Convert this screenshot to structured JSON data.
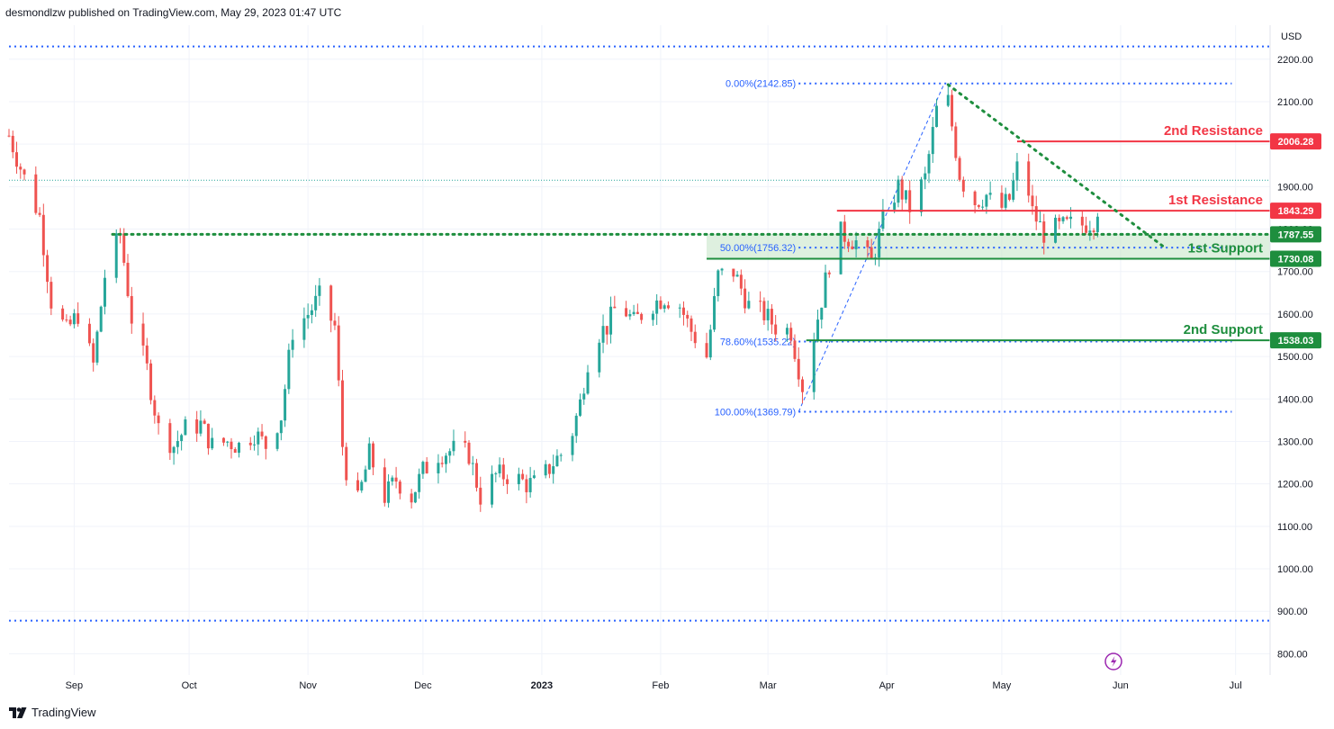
{
  "header": {
    "publisher_line": "desmondlzw published on TradingView.com, May 29, 2023 01:47 UTC"
  },
  "footer": {
    "brand": "TradingView"
  },
  "colors": {
    "up": "#26a69a",
    "down": "#ef5350",
    "resistance": "#f23645",
    "support": "#1e8e3e",
    "fib": "#2962ff",
    "trend": "#1e8e3e",
    "zone": "#c8e6c9",
    "grid": "#f0f3fa"
  },
  "chart_data": {
    "type": "candlestick",
    "currency_label": "USD",
    "ylim": [
      750,
      2280
    ],
    "y_ticks": [
      800,
      900,
      1000,
      1100,
      1200,
      1300,
      1400,
      1500,
      1600,
      1700,
      1800,
      1900,
      2000,
      2100,
      2200
    ],
    "y_tick_labels": [
      "800.00",
      "900.00",
      "1000.00",
      "1100.00",
      "1200.00",
      "1300.00",
      "1400.00",
      "1500.00",
      "1600.00",
      "1700.00",
      "1800.00",
      "1900.00",
      "2000.00",
      "2100.00",
      "2200.00"
    ],
    "x_labels": [
      {
        "label": "Sep",
        "date": "2022-09-01"
      },
      {
        "label": "Oct",
        "date": "2022-10-01"
      },
      {
        "label": "Nov",
        "date": "2022-11-01"
      },
      {
        "label": "Dec",
        "date": "2022-12-01"
      },
      {
        "label": "2023",
        "date": "2023-01-01",
        "bold": true
      },
      {
        "label": "Feb",
        "date": "2023-02-01"
      },
      {
        "label": "Mar",
        "date": "2023-03-01"
      },
      {
        "label": "Apr",
        "date": "2023-04-01"
      },
      {
        "label": "May",
        "date": "2023-05-01"
      },
      {
        "label": "Jun",
        "date": "2023-06-01"
      },
      {
        "label": "Jul",
        "date": "2023-07-01"
      }
    ],
    "x_range": [
      "2022-08-15",
      "2023-07-10"
    ],
    "price_path": [
      [
        "2022-08-15",
        2020
      ],
      [
        "2022-08-19",
        1920
      ],
      [
        "2022-08-23",
        1830
      ],
      [
        "2022-08-26",
        1630
      ],
      [
        "2022-08-30",
        1560
      ],
      [
        "2022-09-02",
        1600
      ],
      [
        "2022-09-06",
        1480
      ],
      [
        "2022-09-09",
        1690
      ],
      [
        "2022-09-13",
        1790
      ],
      [
        "2022-09-16",
        1590
      ],
      [
        "2022-09-20",
        1470
      ],
      [
        "2022-09-23",
        1330
      ],
      [
        "2022-09-27",
        1290
      ],
      [
        "2022-09-30",
        1330
      ],
      [
        "2022-10-04",
        1340
      ],
      [
        "2022-10-07",
        1290
      ],
      [
        "2022-10-11",
        1300
      ],
      [
        "2022-10-14",
        1290
      ],
      [
        "2022-10-18",
        1320
      ],
      [
        "2022-10-21",
        1290
      ],
      [
        "2022-10-25",
        1360
      ],
      [
        "2022-10-28",
        1560
      ],
      [
        "2022-11-01",
        1600
      ],
      [
        "2022-11-04",
        1640
      ],
      [
        "2022-11-08",
        1570
      ],
      [
        "2022-11-10",
        1290
      ],
      [
        "2022-11-13",
        1120
      ],
      [
        "2022-11-17",
        1270
      ],
      [
        "2022-11-21",
        1170
      ],
      [
        "2022-11-24",
        1210
      ],
      [
        "2022-11-28",
        1170
      ],
      [
        "2022-12-01",
        1230
      ],
      [
        "2022-12-05",
        1270
      ],
      [
        "2022-12-09",
        1280
      ],
      [
        "2022-12-13",
        1270
      ],
      [
        "2022-12-16",
        1170
      ],
      [
        "2022-12-20",
        1220
      ],
      [
        "2022-12-24",
        1220
      ],
      [
        "2022-12-28",
        1200
      ],
      [
        "2022-12-31",
        1200
      ],
      [
        "2023-01-04",
        1250
      ],
      [
        "2023-01-08",
        1290
      ],
      [
        "2023-01-11",
        1390
      ],
      [
        "2023-01-14",
        1540
      ],
      [
        "2023-01-18",
        1570
      ],
      [
        "2023-01-21",
        1630
      ],
      [
        "2023-01-25",
        1580
      ],
      [
        "2023-01-29",
        1620
      ],
      [
        "2023-02-02",
        1640
      ],
      [
        "2023-02-06",
        1620
      ],
      [
        "2023-02-09",
        1560
      ],
      [
        "2023-02-13",
        1500
      ],
      [
        "2023-02-16",
        1690
      ],
      [
        "2023-02-20",
        1700
      ],
      [
        "2023-02-24",
        1620
      ],
      [
        "2023-02-28",
        1600
      ],
      [
        "2023-03-03",
        1570
      ],
      [
        "2023-03-07",
        1560
      ],
      [
        "2023-03-10",
        1430
      ],
      [
        "2023-03-13",
        1550
      ],
      [
        "2023-03-17",
        1720
      ],
      [
        "2023-03-20",
        1790
      ],
      [
        "2023-03-24",
        1770
      ],
      [
        "2023-03-28",
        1720
      ],
      [
        "2023-03-31",
        1820
      ],
      [
        "2023-04-04",
        1900
      ],
      [
        "2023-04-07",
        1850
      ],
      [
        "2023-04-11",
        1920
      ],
      [
        "2023-04-14",
        2080
      ],
      [
        "2023-04-17",
        2100
      ],
      [
        "2023-04-20",
        1930
      ],
      [
        "2023-04-23",
        1860
      ],
      [
        "2023-04-27",
        1880
      ],
      [
        "2023-04-30",
        1840
      ],
      [
        "2023-05-03",
        1870
      ],
      [
        "2023-05-06",
        1980
      ],
      [
        "2023-05-09",
        1840
      ],
      [
        "2023-05-12",
        1790
      ],
      [
        "2023-05-15",
        1800
      ],
      [
        "2023-05-19",
        1810
      ],
      [
        "2023-05-22",
        1810
      ],
      [
        "2023-05-25",
        1820
      ],
      [
        "2023-05-28",
        1910
      ]
    ],
    "fib_levels": [
      {
        "label": "0.00%(2142.85)",
        "price": 2142.85
      },
      {
        "label": "50.00%(1756.32)",
        "price": 1756.32
      },
      {
        "label": "78.60%(1535.22)",
        "price": 1535.22
      },
      {
        "label": "100.00%(1369.79)",
        "price": 1369.79
      }
    ],
    "fib_start_date": "2023-03-09",
    "fib_end_date": "2023-06-30",
    "fib_diagonal": [
      [
        "2023-03-09",
        1369.79
      ],
      [
        "2023-04-16",
        2142.85
      ]
    ],
    "levels": [
      {
        "name": "2nd Resistance",
        "price": 2006.28,
        "tag": "2006.28",
        "kind": "resistance",
        "from": "2023-05-05"
      },
      {
        "name": "1st Resistance",
        "price": 1843.29,
        "tag": "1843.29",
        "kind": "resistance",
        "from": "2023-03-19"
      },
      {
        "name": "",
        "price": 1787.55,
        "tag": "1787.55",
        "kind": "support-dotted",
        "from": "2022-09-11"
      },
      {
        "name": "1st Support",
        "price": 1730.08,
        "tag": "1730.08",
        "kind": "support",
        "from": "2023-02-13"
      },
      {
        "name": "2nd Support",
        "price": 1538.03,
        "tag": "1538.03",
        "kind": "support",
        "from": "2023-03-11"
      }
    ],
    "support_zone": [
      1730.08,
      1787.55
    ],
    "support_zone_from": "2023-02-13",
    "dotted_extremes": [
      2230,
      878
    ],
    "last_price_line": 1915,
    "trend_line": [
      [
        "2023-04-17",
        2140
      ],
      [
        "2023-06-12",
        1760
      ]
    ]
  }
}
